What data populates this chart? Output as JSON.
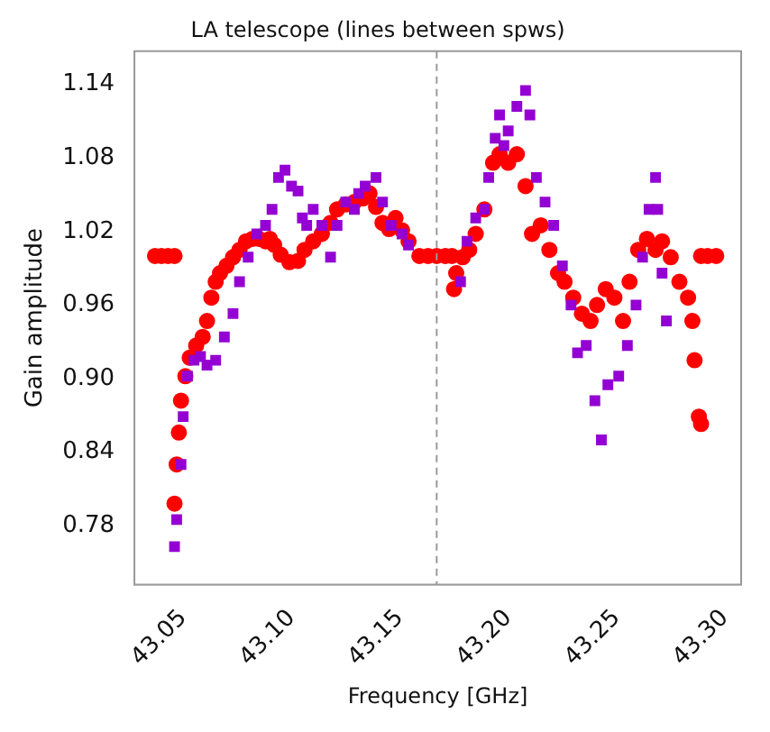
{
  "chart_data": {
    "type": "scatter",
    "title": "LA telescope (lines between spws)",
    "xlabel": "Frequency [GHz]",
    "ylabel": "Gain amplitude",
    "xlim": [
      43.0275,
      43.3075
    ],
    "xticks": [
      {
        "value": 43.05,
        "label": "43.05"
      },
      {
        "value": 43.1,
        "label": "43.10"
      },
      {
        "value": 43.15,
        "label": "43.15"
      },
      {
        "value": 43.2,
        "label": "43.20"
      },
      {
        "value": 43.25,
        "label": "43.25"
      },
      {
        "value": 43.3,
        "label": "43.30"
      }
    ],
    "ylim": [
      0.732,
      1.167
    ],
    "yticks": [
      0.78,
      0.84,
      {
        "value": 0.9,
        "label": "0.90"
      },
      0.96,
      1.02,
      1.08,
      1.14
    ],
    "grid": false,
    "legend": false,
    "ref_lines": [
      {
        "axis": "x",
        "value": 43.167,
        "color": "#999999",
        "line_style": "dashed"
      }
    ],
    "series": [
      {
        "color": "#9400d3",
        "marker": "square",
        "x": [
          43.046,
          43.047,
          43.049,
          43.05,
          43.052,
          43.055,
          43.058,
          43.061,
          43.065,
          43.069,
          43.073,
          43.076,
          43.08,
          43.084,
          43.088,
          43.091,
          43.094,
          43.097,
          43.1,
          43.103,
          43.105,
          43.107,
          43.11,
          43.114,
          43.118,
          43.121,
          43.125,
          43.129,
          43.131,
          43.134,
          43.139,
          43.142,
          43.146,
          43.151,
          43.154,
          43.178,
          43.181,
          43.185,
          43.189,
          43.191,
          43.194,
          43.196,
          43.198,
          43.2,
          43.204,
          43.208,
          43.21,
          43.213,
          43.217,
          43.221,
          43.225,
          43.229,
          43.232,
          43.236,
          43.24,
          43.243,
          43.246,
          43.251,
          43.255,
          43.259,
          43.262,
          43.265,
          43.268,
          43.269,
          43.271,
          43.273
        ],
        "values": [
          0.763,
          0.785,
          0.83,
          0.869,
          0.902,
          0.915,
          0.918,
          0.911,
          0.915,
          0.934,
          0.953,
          0.979,
          0.999,
          1.018,
          1.025,
          1.038,
          1.064,
          1.07,
          1.057,
          1.053,
          1.031,
          1.025,
          1.038,
          1.025,
          0.999,
          1.025,
          1.044,
          1.038,
          1.051,
          1.057,
          1.064,
          1.044,
          1.025,
          1.018,
          1.009,
          0.979,
          1.012,
          1.031,
          1.038,
          1.064,
          1.096,
          1.115,
          1.09,
          1.102,
          1.122,
          1.135,
          1.115,
          1.064,
          1.044,
          1.025,
          0.992,
          0.96,
          0.921,
          0.927,
          0.882,
          0.85,
          0.895,
          0.902,
          0.927,
          0.96,
          0.999,
          1.038,
          1.064,
          1.038,
          0.986,
          0.947
        ]
      },
      {
        "color": "#ff0000",
        "marker": "circle",
        "x": [
          43.037,
          43.04,
          43.043,
          43.046,
          43.046,
          43.047,
          43.048,
          43.049,
          43.051,
          43.053,
          43.056,
          43.059,
          43.061,
          43.063,
          43.065,
          43.067,
          43.07,
          43.073,
          43.076,
          43.079,
          43.082,
          43.085,
          43.088,
          43.09,
          43.092,
          43.095,
          43.099,
          43.103,
          43.106,
          43.11,
          43.114,
          43.118,
          43.121,
          43.125,
          43.129,
          43.133,
          43.136,
          43.139,
          43.142,
          43.145,
          43.148,
          43.151,
          43.154,
          43.159,
          43.163,
          43.167,
          43.171,
          43.174,
          43.175,
          43.176,
          43.179,
          43.182,
          43.185,
          43.189,
          43.193,
          43.196,
          43.2,
          43.204,
          43.208,
          43.211,
          43.215,
          43.219,
          43.223,
          43.226,
          43.23,
          43.234,
          43.238,
          43.241,
          43.245,
          43.249,
          43.253,
          43.256,
          43.26,
          43.264,
          43.268,
          43.271,
          43.275,
          43.279,
          43.283,
          43.285,
          43.286,
          43.288,
          43.289,
          43.289,
          43.292,
          43.296
        ],
        "values": [
          1.0,
          1.0,
          1.0,
          1.0,
          0.798,
          0.83,
          0.856,
          0.882,
          0.902,
          0.917,
          0.927,
          0.934,
          0.947,
          0.966,
          0.979,
          0.986,
          0.992,
          0.999,
          1.005,
          1.012,
          1.014,
          1.014,
          1.012,
          1.014,
          1.009,
          1.001,
          0.995,
          0.996,
          1.005,
          1.012,
          1.018,
          1.027,
          1.038,
          1.042,
          1.044,
          1.047,
          1.051,
          1.04,
          1.027,
          1.022,
          1.031,
          1.021,
          1.012,
          1.0,
          1.0,
          1.0,
          1.0,
          1.0,
          0.973,
          0.986,
          0.999,
          1.005,
          1.018,
          1.038,
          1.076,
          1.083,
          1.076,
          1.083,
          1.057,
          1.018,
          1.025,
          1.005,
          0.986,
          0.979,
          0.966,
          0.953,
          0.947,
          0.96,
          0.973,
          0.966,
          0.947,
          0.979,
          1.005,
          1.014,
          1.005,
          1.012,
          0.999,
          0.979,
          0.966,
          0.947,
          0.915,
          0.869,
          0.863,
          1.0,
          1.0,
          1.0
        ]
      }
    ]
  }
}
